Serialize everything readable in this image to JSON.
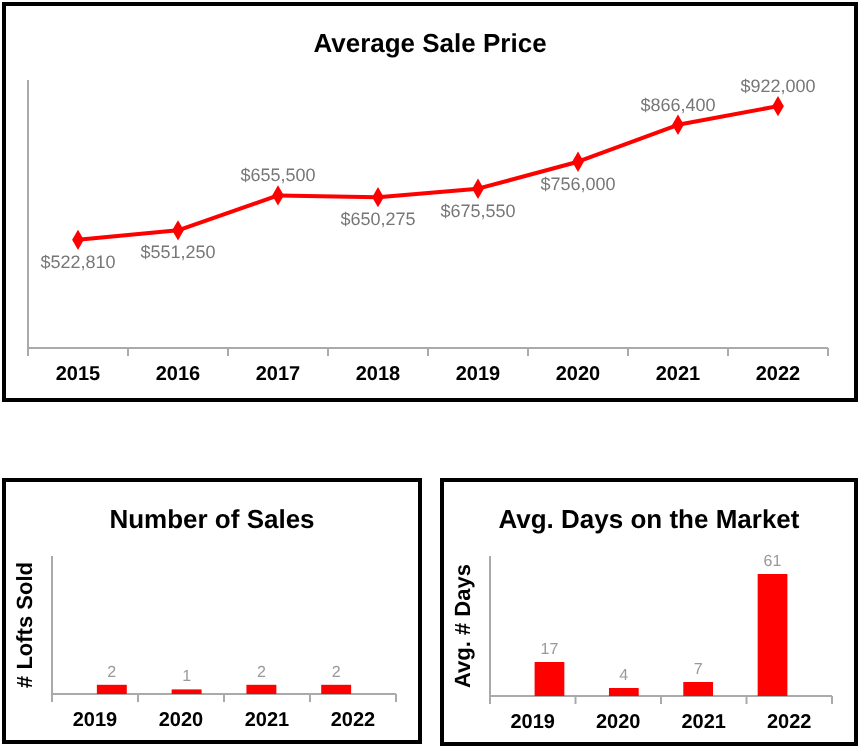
{
  "chart_data": [
    {
      "type": "line",
      "title": "Average Sale Price",
      "categories": [
        "2015",
        "2016",
        "2017",
        "2018",
        "2019",
        "2020",
        "2021",
        "2022"
      ],
      "series": [
        {
          "color": "#ff0000",
          "values": [
            522810,
            551250,
            655500,
            650275,
            675550,
            756000,
            866400,
            922000
          ],
          "value_labels": [
            "$522,810",
            "$551,250",
            "$655,500",
            "$650,275",
            "$675,550",
            "$756,000",
            "$866,400",
            "$922,000"
          ]
        }
      ],
      "ylim": [
        200000,
        1000000
      ],
      "tick_labels": "x",
      "marker": "diamond"
    },
    {
      "type": "bar",
      "title": "Number of Sales",
      "ylabel": "# Lofts Sold",
      "categories": [
        "2019",
        "2020",
        "2021",
        "2022"
      ],
      "values": [
        2,
        1,
        2,
        2
      ],
      "color": "#ff0000",
      "ylim": [
        0,
        30
      ],
      "tick_labels": "x",
      "data_labels": true
    },
    {
      "type": "bar",
      "title": "Avg. Days on the Market",
      "ylabel": "Avg. # Days",
      "categories": [
        "2019",
        "2020",
        "2021",
        "2022"
      ],
      "values": [
        17,
        4,
        7,
        61
      ],
      "color": "#ff0000",
      "ylim": [
        0,
        70
      ],
      "tick_labels": "x",
      "data_labels": true
    }
  ]
}
